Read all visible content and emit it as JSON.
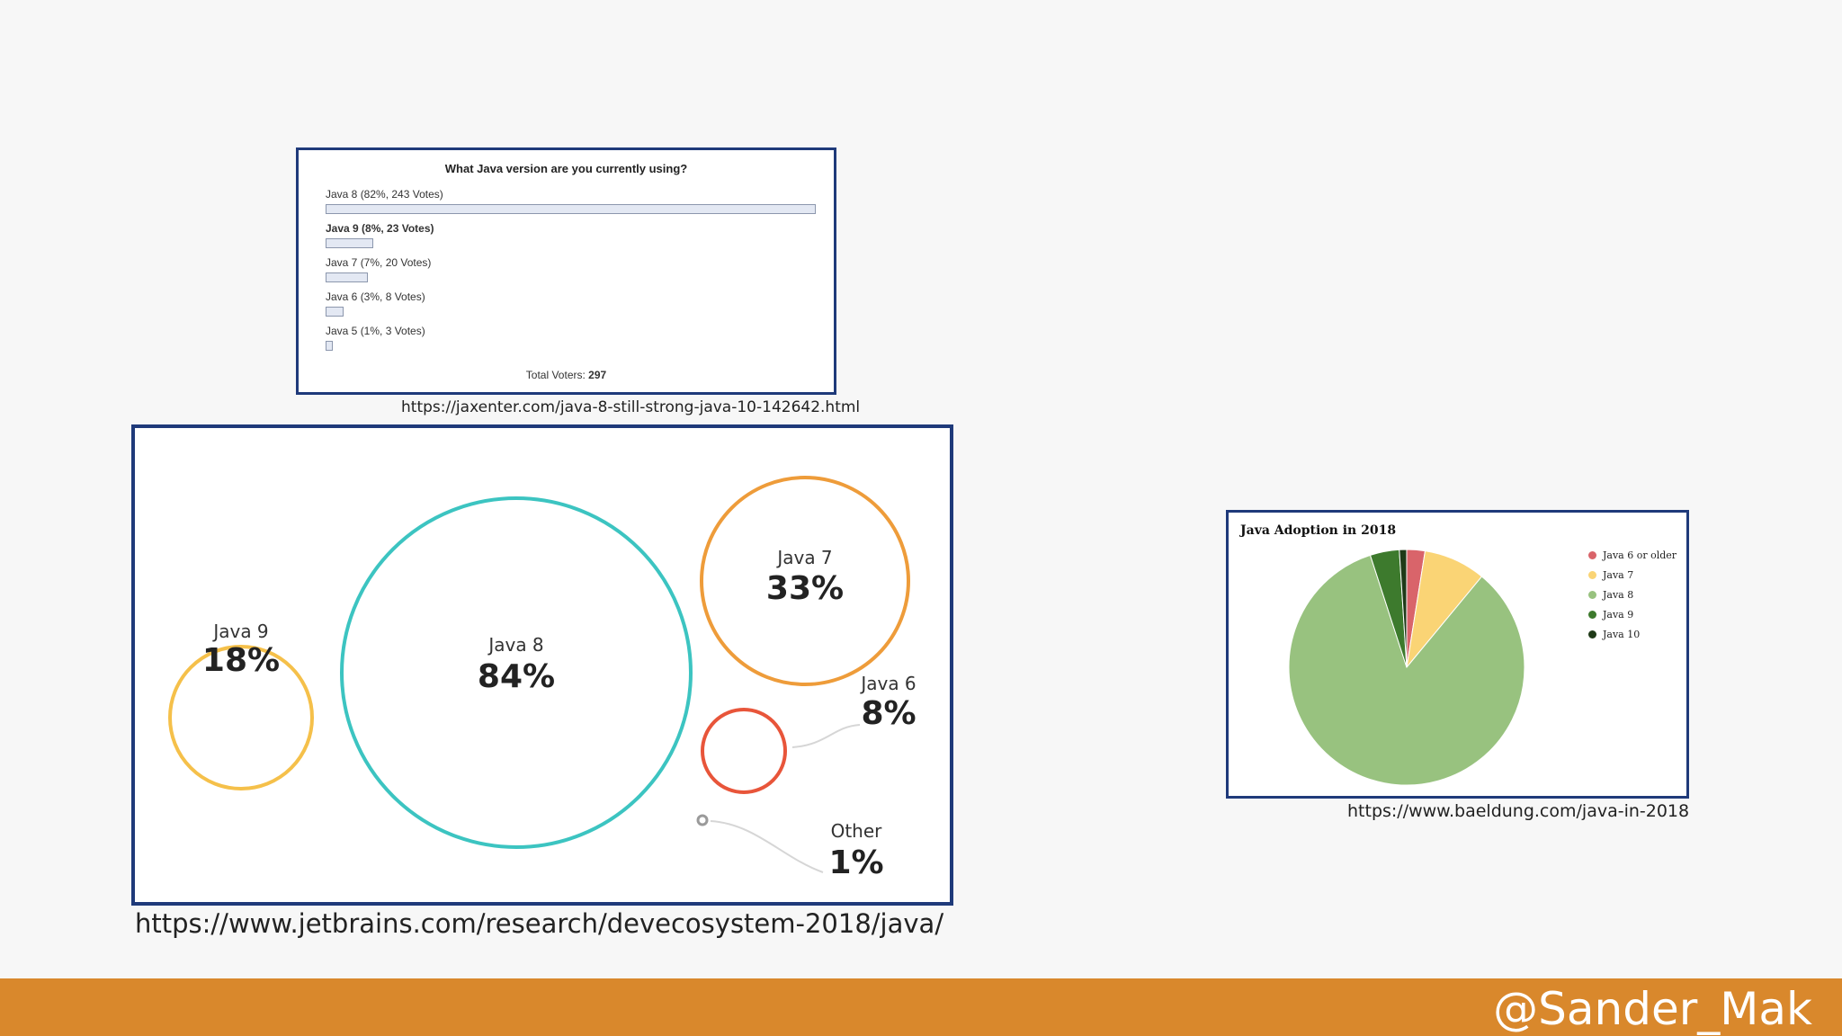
{
  "poll": {
    "title": "What Java version are you currently using?",
    "options": [
      {
        "label": "Java 8 (82%, 243 Votes)",
        "fraction": 0.82,
        "bold": false
      },
      {
        "label": "Java 9 (8%, 23 Votes)",
        "fraction": 0.08,
        "bold": true
      },
      {
        "label": "Java 7 (7%, 20 Votes)",
        "fraction": 0.07,
        "bold": false
      },
      {
        "label": "Java 6 (3%, 8 Votes)",
        "fraction": 0.03,
        "bold": false
      },
      {
        "label": "Java 5 (1%, 3 Votes)",
        "fraction": 0.01,
        "bold": false
      }
    ],
    "total_label": "Total Voters:",
    "total_value": "297",
    "source": "https://jaxenter.com/java-8-still-strong-java-10-142642.html"
  },
  "bubbles": {
    "source": "https://www.jetbrains.com/research/devecosystem-2018/java/"
  },
  "pie": {
    "source": "https://www.baeldung.com/java-in-2018"
  },
  "chart_data": [
    {
      "type": "bar",
      "title": "What Java version are you currently using?",
      "categories": [
        "Java 8",
        "Java 9",
        "Java 7",
        "Java 6",
        "Java 5"
      ],
      "values": [
        82,
        8,
        7,
        3,
        1
      ],
      "votes": [
        243,
        23,
        20,
        8,
        3
      ],
      "total_voters": 297
    },
    {
      "type": "bubble",
      "categories": [
        "Java 9",
        "Java 8",
        "Java 7",
        "Java 6",
        "Other"
      ],
      "labels": [
        "18%",
        "84%",
        "33%",
        "8%",
        "1%"
      ],
      "values": [
        18,
        84,
        33,
        8,
        1
      ],
      "colors": [
        "#f5c04a",
        "#3cc4c1",
        "#ee9c3a",
        "#e8553a",
        "#9a9a9a"
      ]
    },
    {
      "type": "pie",
      "title": "Java Adoption in 2018",
      "categories": [
        "Java 6 or older",
        "Java 7",
        "Java 8",
        "Java 9",
        "Java 10"
      ],
      "values": [
        2.5,
        8.5,
        84,
        4,
        1
      ],
      "colors": [
        "#d9646a",
        "#fad475",
        "#98c27f",
        "#3d7a2d",
        "#1f3a18"
      ],
      "legend_position": "top-right"
    }
  ],
  "footer": {
    "handle": "@Sander_Mak"
  }
}
